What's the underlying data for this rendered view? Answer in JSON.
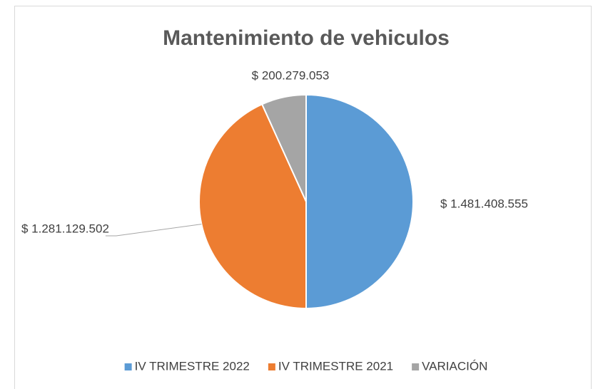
{
  "chart_data": {
    "type": "pie",
    "title": "Mantenimiento de vehiculos",
    "categories": [
      "IV TRIMESTRE 2022",
      "IV TRIMESTRE 2021",
      "VARIACIÓN"
    ],
    "values": [
      1481408555,
      1281129502,
      200279053
    ],
    "value_labels": [
      "$ 1.481.408.555",
      "$ 1.281.129.502",
      "$ 200.279.053"
    ],
    "colors": [
      "#5b9bd5",
      "#ed7d31",
      "#a5a5a5"
    ],
    "legend": "bottom"
  }
}
